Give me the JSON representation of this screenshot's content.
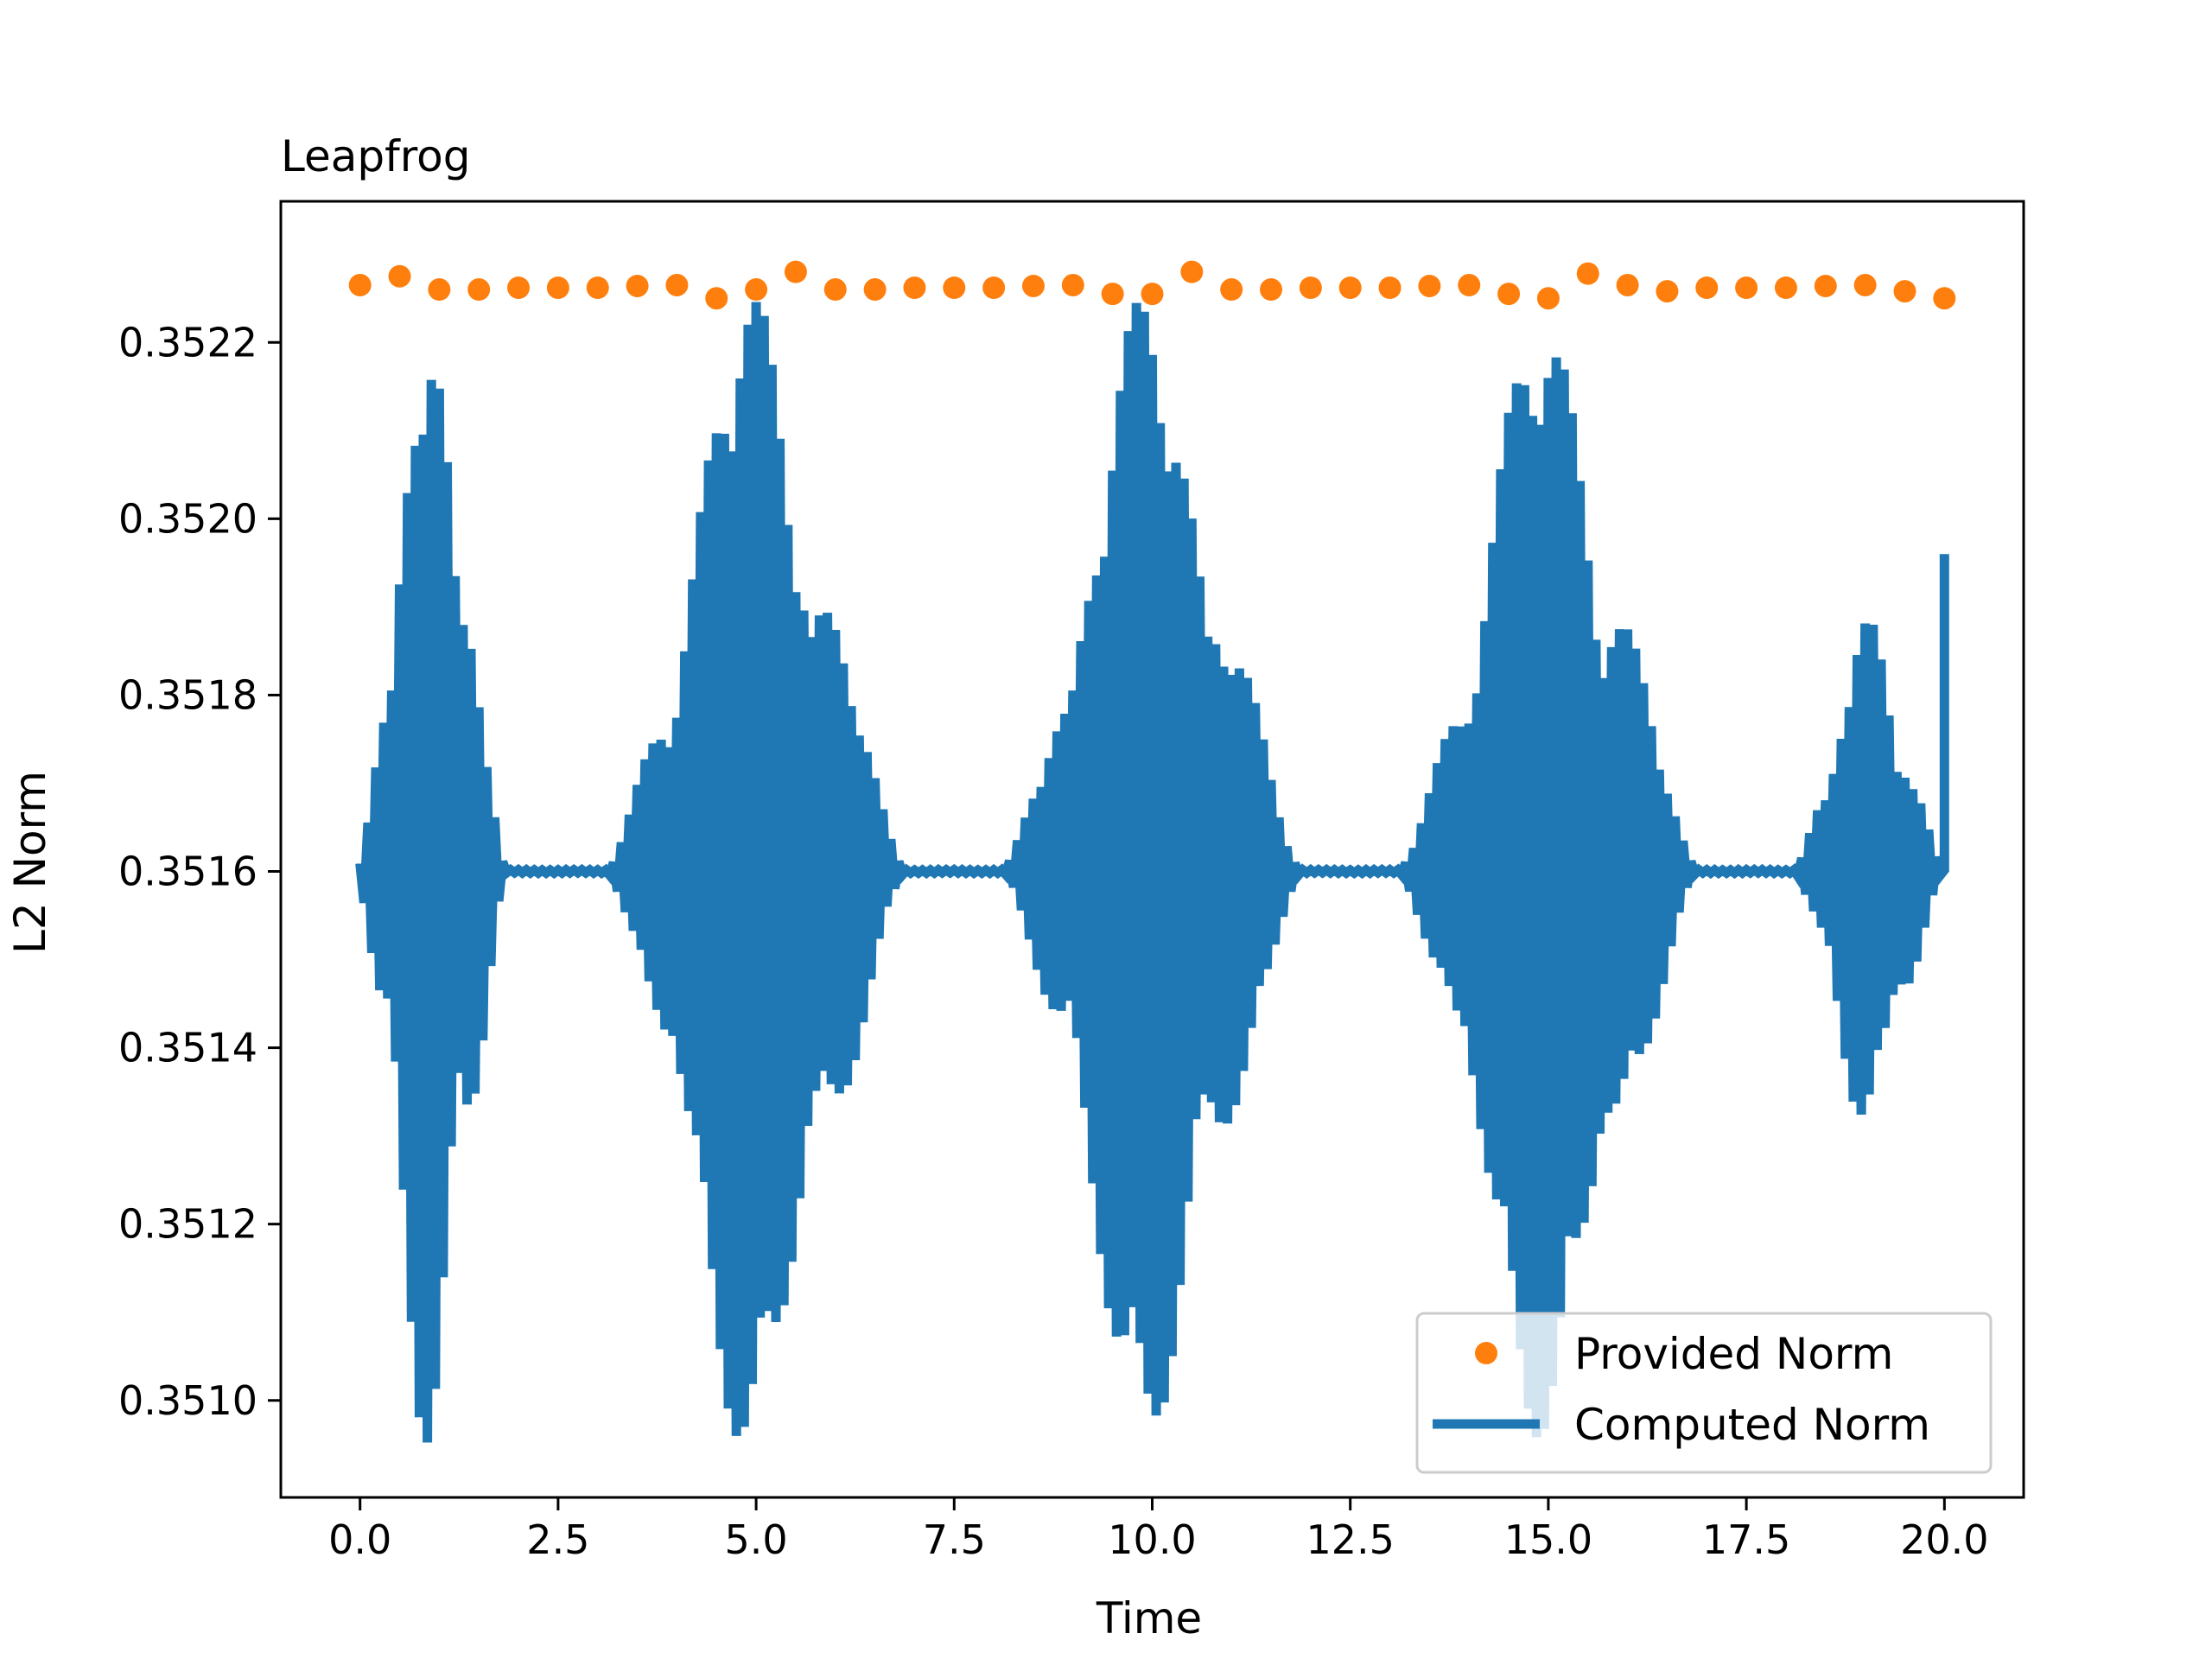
{
  "chart_data": {
    "type": "line",
    "title": "Leapfrog",
    "xlabel": "Time",
    "ylabel": "L2 Norm",
    "xlim": [
      -1.0,
      21.0
    ],
    "ylim": [
      0.35089,
      0.35236
    ],
    "grid": false,
    "legend_position": "lower-right",
    "x_ticks": [
      0.0,
      2.5,
      5.0,
      7.5,
      10.0,
      12.5,
      15.0,
      17.5,
      20.0
    ],
    "x_tick_labels": [
      "0.0",
      "2.5",
      "5.0",
      "7.5",
      "10.0",
      "12.5",
      "15.0",
      "17.5",
      "20.0"
    ],
    "y_ticks": [
      0.351,
      0.3512,
      0.3514,
      0.3516,
      0.3518,
      0.352,
      0.3522
    ],
    "y_tick_labels": [
      "0.3510",
      "0.3512",
      "0.3514",
      "0.3516",
      "0.3518",
      "0.3520",
      "0.3522"
    ],
    "series": [
      {
        "name": "Provided Norm",
        "style": "markers",
        "color": "#ff7f0e",
        "x": [
          0.0,
          0.5,
          1.0,
          1.5,
          2.0,
          2.5,
          3.0,
          3.5,
          4.0,
          4.5,
          5.0,
          5.5,
          6.0,
          6.5,
          7.0,
          7.5,
          8.0,
          8.5,
          9.0,
          9.5,
          10.0,
          10.5,
          11.0,
          11.5,
          12.0,
          12.5,
          13.0,
          13.5,
          14.0,
          14.5,
          15.0,
          15.5,
          16.0,
          16.5,
          17.0,
          17.5,
          18.0,
          18.5,
          19.0,
          19.5,
          20.0
        ],
        "y": [
          0.352265,
          0.352275,
          0.35226,
          0.35226,
          0.352262,
          0.352262,
          0.352262,
          0.352264,
          0.352265,
          0.35225,
          0.35226,
          0.35228,
          0.35226,
          0.35226,
          0.352262,
          0.352262,
          0.352262,
          0.352264,
          0.352265,
          0.352255,
          0.352255,
          0.35228,
          0.35226,
          0.35226,
          0.352262,
          0.352262,
          0.352262,
          0.352264,
          0.352265,
          0.352255,
          0.35225,
          0.352278,
          0.352265,
          0.352258,
          0.352262,
          0.352262,
          0.352262,
          0.352264,
          0.352265,
          0.352258,
          0.35225
        ]
      },
      {
        "name": "Computed Norm",
        "style": "line",
        "color": "#1f77b4",
        "description_of_signal": "oscillation about 0.35160 with beating bursts, period 5",
        "baseline": 0.3516,
        "bursts": [
          {
            "x_start": -0.05,
            "x_end": 1.85,
            "max": 0.35226,
            "min": 0.35095
          },
          {
            "x_start": 3.1,
            "x_end": 6.9,
            "max": 0.35227,
            "min": 0.35095
          },
          {
            "x_start": 8.1,
            "x_end": 11.9,
            "max": 0.35226,
            "min": 0.35095
          },
          {
            "x_start": 13.1,
            "x_end": 16.9,
            "max": 0.35225,
            "min": 0.351
          },
          {
            "x_start": 18.1,
            "x_end": 20.0,
            "max": 0.35188,
            "min": 0.3513
          }
        ],
        "end_point": {
          "x": 20.0,
          "y": 0.35196
        }
      }
    ]
  }
}
